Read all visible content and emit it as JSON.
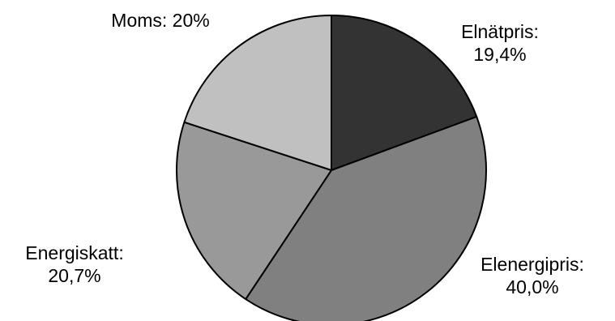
{
  "chart_data": {
    "type": "pie",
    "title": "",
    "slices": [
      {
        "name": "Elnätpris",
        "value": 19.4,
        "label_lines": [
          "Elnätpris:",
          "19,4%"
        ],
        "color": "#333333"
      },
      {
        "name": "Elenergipris",
        "value": 40.0,
        "label_lines": [
          "Elenergipris:",
          "40,0%"
        ],
        "color": "#808080"
      },
      {
        "name": "Energiskatt",
        "value": 20.7,
        "label_lines": [
          "Energiskatt:",
          "20,7%"
        ],
        "color": "#999999"
      },
      {
        "name": "Moms",
        "value": 20,
        "label_lines": [
          "Moms: 20%"
        ],
        "color": "#c0c0c0"
      }
    ],
    "legend": "none",
    "start_angle": "12 o'clock",
    "direction": "clockwise"
  }
}
